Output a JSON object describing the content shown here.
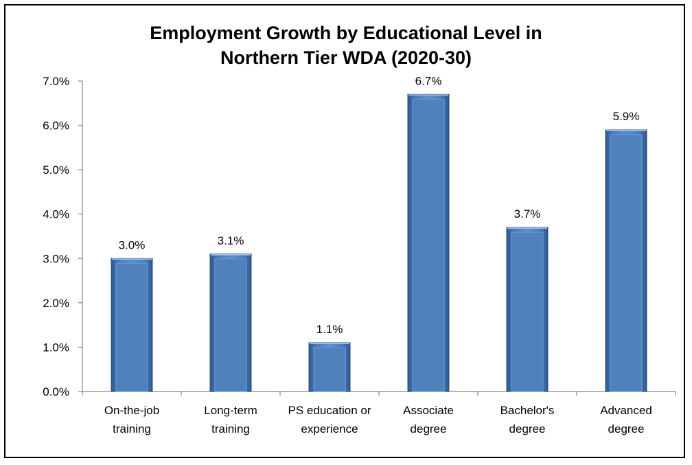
{
  "chart_data": {
    "type": "bar",
    "title_lines": [
      "Employment Growth by Educational Level in",
      "Northern Tier WDA (2020-30)"
    ],
    "categories": [
      [
        "On-the-job",
        "training"
      ],
      [
        "Long-term",
        "training"
      ],
      [
        "PS education or",
        "experience"
      ],
      [
        "Associate",
        "degree"
      ],
      [
        "Bachelor's",
        "degree"
      ],
      [
        "Advanced",
        "degree"
      ]
    ],
    "values": [
      3.0,
      3.1,
      1.1,
      6.7,
      3.7,
      5.9
    ],
    "data_labels": [
      "3.0%",
      "3.1%",
      "1.1%",
      "6.7%",
      "3.7%",
      "5.9%"
    ],
    "y_ticks": [
      0,
      1,
      2,
      3,
      4,
      5,
      6,
      7
    ],
    "y_tick_labels": [
      "0.0%",
      "1.0%",
      "2.0%",
      "3.0%",
      "4.0%",
      "5.0%",
      "6.0%",
      "7.0%"
    ],
    "ylim": [
      0,
      7
    ],
    "grid": false,
    "legend": "none",
    "bar_color": "#4f81bd",
    "bar_edge_color": "#2c4d75"
  }
}
